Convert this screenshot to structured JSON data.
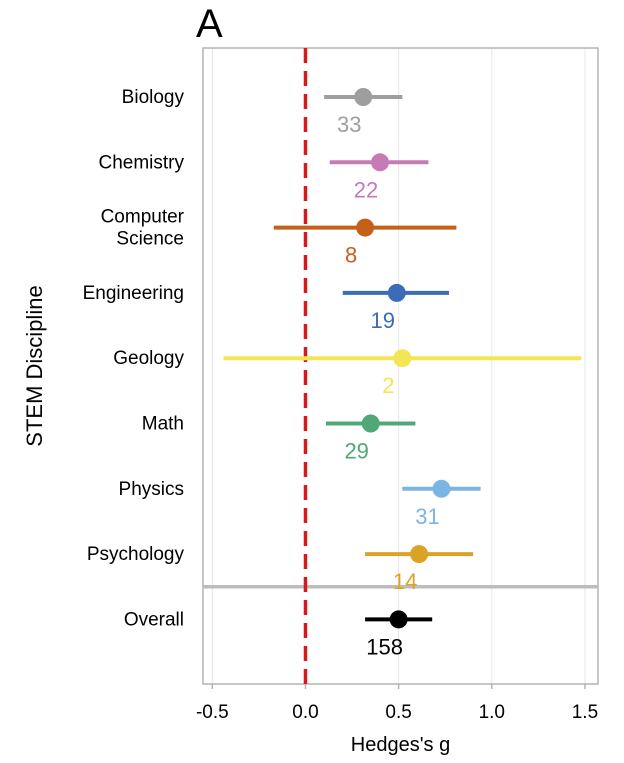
{
  "panel_label": "A",
  "chart_data": {
    "type": "forest",
    "title": "",
    "xlabel": "Hedges's g",
    "ylabel": "STEM Discipline",
    "xlim": [
      -0.55,
      1.57
    ],
    "xticks": [
      -0.5,
      0.0,
      0.5,
      1.0,
      1.5
    ],
    "xtick_labels": [
      "-0.5",
      "0.0",
      "0.5",
      "1.0",
      "1.5"
    ],
    "reference_line": {
      "x": 0.0,
      "style": "dashed",
      "color": "#d7191c"
    },
    "vertical_grid": true,
    "separator_before_overall": true,
    "rows": [
      {
        "label": [
          "Biology"
        ],
        "g": 0.31,
        "ci_low": 0.1,
        "ci_high": 0.52,
        "n": "33",
        "color": "#9e9e9e"
      },
      {
        "label": [
          "Chemistry"
        ],
        "g": 0.4,
        "ci_low": 0.13,
        "ci_high": 0.66,
        "n": "22",
        "color": "#c67bb5"
      },
      {
        "label": [
          "Computer",
          "Science"
        ],
        "g": 0.32,
        "ci_low": -0.17,
        "ci_high": 0.81,
        "n": "8",
        "color": "#c5601a"
      },
      {
        "label": [
          "Engineering"
        ],
        "g": 0.49,
        "ci_low": 0.2,
        "ci_high": 0.77,
        "n": "19",
        "color": "#3a6db5"
      },
      {
        "label": [
          "Geology"
        ],
        "g": 0.52,
        "ci_low": -0.44,
        "ci_high": 1.48,
        "n": "2",
        "color": "#f2e655"
      },
      {
        "label": [
          "Math"
        ],
        "g": 0.35,
        "ci_low": 0.11,
        "ci_high": 0.59,
        "n": "29",
        "color": "#4fa876"
      },
      {
        "label": [
          "Physics"
        ],
        "g": 0.73,
        "ci_low": 0.52,
        "ci_high": 0.94,
        "n": "31",
        "color": "#7bb5e5"
      },
      {
        "label": [
          "Psychology"
        ],
        "g": 0.61,
        "ci_low": 0.32,
        "ci_high": 0.9,
        "n": "14",
        "color": "#dba326"
      },
      {
        "label": [
          "Overall"
        ],
        "g": 0.5,
        "ci_low": 0.32,
        "ci_high": 0.68,
        "n": "158",
        "color": "#000000"
      }
    ]
  }
}
